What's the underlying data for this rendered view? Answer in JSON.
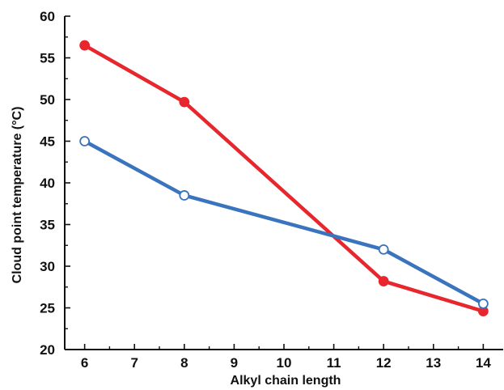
{
  "chart_data": {
    "type": "line",
    "title": "",
    "xlabel": "Alkyl chain length",
    "ylabel": "Cloud point temperature (°C)",
    "xlim": [
      5.6,
      14.4
    ],
    "ylim": [
      20,
      60
    ],
    "xticks": [
      6,
      7,
      8,
      9,
      10,
      11,
      12,
      13,
      14
    ],
    "yticks": [
      20,
      25,
      30,
      35,
      40,
      45,
      50,
      55,
      60
    ],
    "grid": false,
    "legend": "none",
    "series": [
      {
        "color": "#e8262d",
        "marker": "filled-circle",
        "x": [
          6,
          8,
          12,
          14
        ],
        "y": [
          56.5,
          49.7,
          28.2,
          24.6
        ]
      },
      {
        "color": "#3a74be",
        "marker": "open-circle",
        "x": [
          6,
          8,
          12,
          14
        ],
        "y": [
          45.0,
          38.5,
          32.0,
          25.5
        ]
      }
    ]
  }
}
